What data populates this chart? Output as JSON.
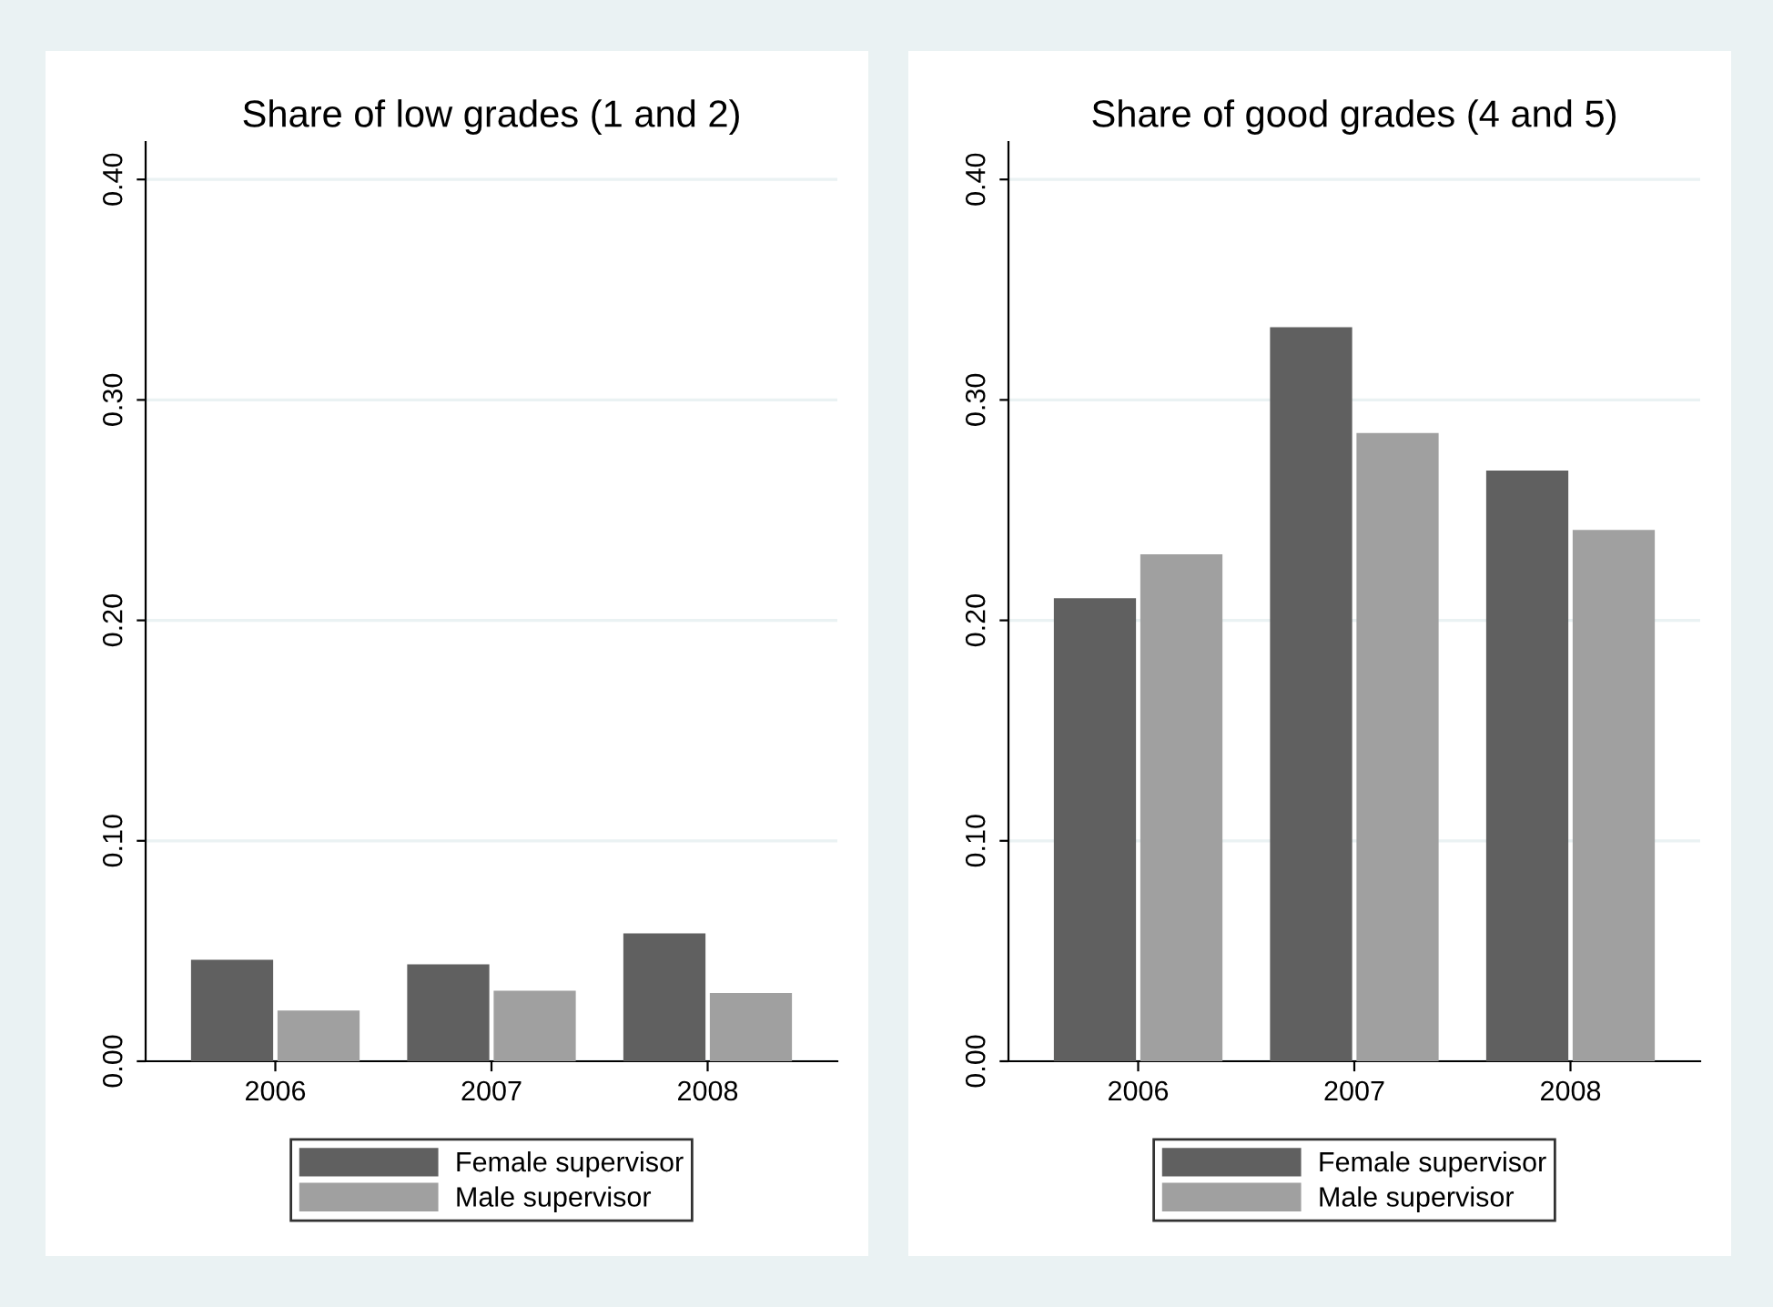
{
  "chart_data": [
    {
      "type": "bar",
      "title": "Share of low grades (1 and 2)",
      "categories": [
        "2006",
        "2007",
        "2008"
      ],
      "series": [
        {
          "name": "Female supervisor",
          "color": "#606060",
          "values": [
            0.046,
            0.044,
            0.058
          ]
        },
        {
          "name": "Male supervisor",
          "color": "#a0a0a0",
          "values": [
            0.023,
            0.032,
            0.031
          ]
        }
      ],
      "ylim": [
        0,
        0.417
      ],
      "yticks": [
        {
          "value": 0,
          "label": "0.00"
        },
        {
          "value": 0.1,
          "label": "0.10"
        },
        {
          "value": 0.2,
          "label": "0.20"
        },
        {
          "value": 0.3,
          "label": "0.30"
        },
        {
          "value": 0.4,
          "label": "0.40"
        }
      ],
      "grid": "y",
      "legend": "bottom"
    },
    {
      "type": "bar",
      "title": "Share of good grades (4 and 5)",
      "categories": [
        "2006",
        "2007",
        "2008"
      ],
      "series": [
        {
          "name": "Female supervisor",
          "color": "#606060",
          "values": [
            0.21,
            0.333,
            0.268
          ]
        },
        {
          "name": "Male supervisor",
          "color": "#a0a0a0",
          "values": [
            0.23,
            0.285,
            0.241
          ]
        }
      ],
      "ylim": [
        0,
        0.417
      ],
      "yticks": [
        {
          "value": 0,
          "label": "0.00"
        },
        {
          "value": 0.1,
          "label": "0.10"
        },
        {
          "value": 0.2,
          "label": "0.20"
        },
        {
          "value": 0.3,
          "label": "0.30"
        },
        {
          "value": 0.4,
          "label": "0.40"
        }
      ],
      "grid": "y",
      "legend": "bottom"
    }
  ]
}
